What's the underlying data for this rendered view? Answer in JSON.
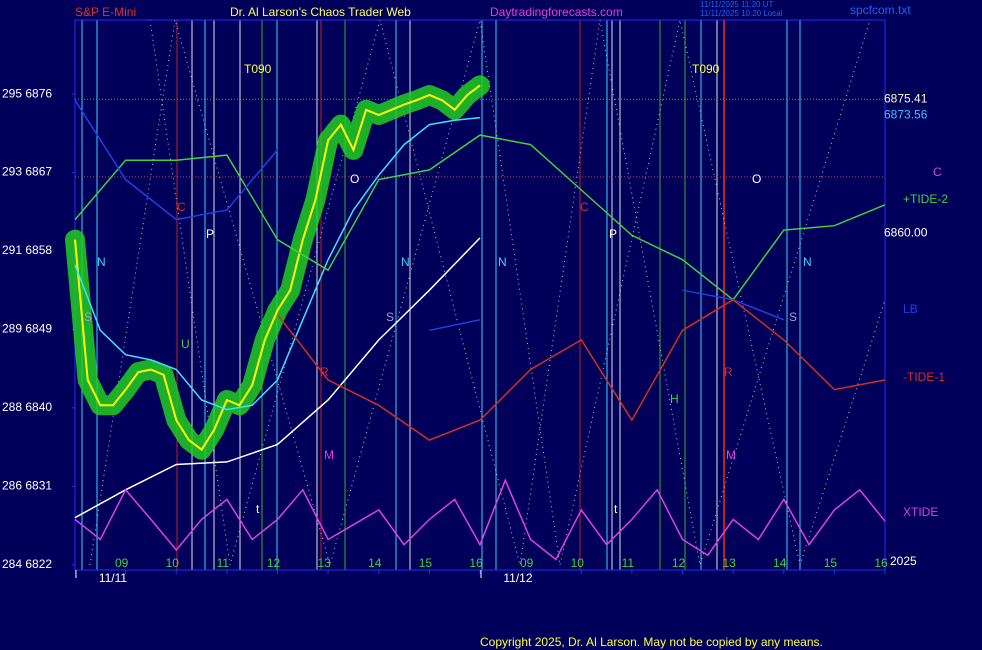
{
  "header": {
    "site": "Dr. Al Larson's Chaos Trader Web",
    "url": "Daytradingforecasts.com",
    "stamp_ut": "11/11/2025 11:20 UT",
    "stamp_local": "11/11/2025 10:20 Local",
    "file": "spcfcom.txt"
  },
  "footer": {
    "copyright": "Copyright 2025, Dr. Al Larson. May not be copied by any means."
  },
  "chart_data": {
    "type": "line",
    "title": "S&P E-Mini",
    "xlim": [
      0,
      16
    ],
    "ylim": [
      6821.4,
      6884.5
    ],
    "xticks": [
      {
        "value": 1,
        "label": "09"
      },
      {
        "value": 2,
        "label": "10"
      },
      {
        "value": 3,
        "label": "11"
      },
      {
        "value": 4,
        "label": "12"
      },
      {
        "value": 5,
        "label": "13"
      },
      {
        "value": 6,
        "label": "14"
      },
      {
        "value": 7,
        "label": "15"
      },
      {
        "value": 8,
        "label": "16"
      },
      {
        "value": 9,
        "label": "09"
      },
      {
        "value": 10,
        "label": "10"
      },
      {
        "value": 11,
        "label": "11"
      },
      {
        "value": 12,
        "label": "12"
      },
      {
        "value": 13,
        "label": "13"
      },
      {
        "value": 14,
        "label": "14"
      },
      {
        "value": 15,
        "label": "15"
      },
      {
        "value": 16,
        "label": "16"
      }
    ],
    "date_ticks": [
      {
        "value": 0.75,
        "label": "11/11"
      },
      {
        "value": 8.75,
        "label": "11/12"
      }
    ],
    "yticks": [
      {
        "value": 6876,
        "label": "295 6876"
      },
      {
        "value": 6867,
        "label": "293 6867"
      },
      {
        "value": 6858,
        "label": "291 6858"
      },
      {
        "value": 6849,
        "label": "289 6849"
      },
      {
        "value": 6840,
        "label": "288 6840"
      },
      {
        "value": 6831,
        "label": "286 6831"
      },
      {
        "value": 6822,
        "label": "284 6822"
      }
    ],
    "levels": [
      {
        "value": 6875.41,
        "color": "#fff8d0"
      },
      {
        "value": 6873.56,
        "color": "#40c0ff"
      },
      {
        "value": 6860,
        "label": "6860.00",
        "color": "#ffffff"
      }
    ],
    "level_lines": [
      {
        "value": 6875.41,
        "color": "#909000"
      },
      {
        "value": 6866.5,
        "color": "#c04060"
      }
    ],
    "series": [
      {
        "color": "#ffff00",
        "glow": "#22cc22",
        "x": [
          0,
          0.25,
          0.5,
          0.75,
          1,
          1.25,
          1.5,
          1.75,
          2,
          2.25,
          2.5,
          2.75,
          3,
          3.25,
          3.5,
          3.75,
          4,
          4.25,
          4.5,
          4.75,
          5,
          5.25,
          5.5,
          5.75,
          6,
          6.25,
          6.5,
          6.75,
          7,
          7.25,
          7.5,
          7.75,
          8
        ],
        "values": [
          6859.3,
          6843.2,
          6840.3,
          6840.3,
          6842.1,
          6844.1,
          6844.4,
          6843.8,
          6838.6,
          6836.3,
          6835.2,
          6837.5,
          6840.9,
          6840.3,
          6842.6,
          6847.8,
          6851.2,
          6853.5,
          6859.3,
          6863.9,
          6870.7,
          6872.5,
          6869.6,
          6874.2,
          6873.6,
          6874.2,
          6874.8,
          6875.3,
          6875.9,
          6875.3,
          6874.2,
          6875.9,
          6877.0
        ]
      },
      {
        "color": "#40e0ff",
        "x": [
          0,
          0.5,
          1,
          1.5,
          2,
          2.5,
          3,
          3.5,
          4,
          4.5,
          5,
          5.5,
          6,
          6.5,
          7,
          7.5,
          8
        ],
        "values": [
          6856.4,
          6848.9,
          6846.1,
          6845.5,
          6844.4,
          6840.9,
          6839.8,
          6840.3,
          6843.2,
          6850.1,
          6857.0,
          6862.7,
          6866.7,
          6870.2,
          6872.5,
          6873.0,
          6873.3
        ]
      },
      {
        "color": "#ffffff",
        "x": [
          0,
          1,
          2,
          3,
          4,
          5,
          6,
          7,
          8
        ],
        "values": [
          6827.4,
          6830.6,
          6833.5,
          6833.8,
          6835.8,
          6840.9,
          6847.8,
          6853.5,
          6859.5
        ]
      },
      {
        "name": "+TIDE-2",
        "color": "#40d040",
        "x": [
          0,
          1,
          2,
          3,
          4,
          5,
          6,
          7,
          8,
          9,
          10,
          11,
          12,
          13,
          14,
          15,
          16
        ],
        "values": [
          6861.6,
          6868.4,
          6868.4,
          6869.0,
          6859.3,
          6855.8,
          6866.2,
          6867.3,
          6871.3,
          6870.2,
          6865.0,
          6859.8,
          6857.0,
          6852.4,
          6860.4,
          6860.9,
          6863.3
        ]
      },
      {
        "name": "LB",
        "color": "#2040e0",
        "x": [
          0,
          1,
          2,
          3,
          4,
          5,
          6,
          7,
          8,
          9,
          10,
          11,
          12,
          13,
          14,
          15,
          16
        ],
        "values": [
          6875.3,
          6866.2,
          6861.6,
          6862.7,
          6869.6,
          null,
          null,
          6848.9,
          6850.1,
          null,
          null,
          null,
          6853.5,
          6852.4,
          6850.1,
          null,
          null
        ]
      },
      {
        "name": "-TIDE-1",
        "color": "#d03020",
        "x": [
          0,
          1,
          2,
          3,
          4,
          5,
          6,
          7,
          8,
          9,
          10,
          11,
          12,
          13,
          14,
          15,
          16
        ],
        "values": [
          null,
          null,
          null,
          null,
          6850.7,
          6843.2,
          6840.3,
          6836.3,
          6838.6,
          6844.4,
          6847.8,
          6838.6,
          6848.9,
          6852.4,
          6847.8,
          6842.1,
          6843.2
        ]
      },
      {
        "name": "XTIDE",
        "color": "#e040e0",
        "x": [
          0,
          0.5,
          1,
          1.5,
          2,
          2.5,
          3,
          3.5,
          4,
          4.5,
          5,
          5.5,
          6,
          6.5,
          7,
          7.5,
          8,
          8.5,
          9,
          9.5,
          10,
          10.5,
          11,
          11.5,
          12,
          12.5,
          13,
          13.5,
          14,
          14.5,
          15,
          15.5,
          16
        ],
        "values": [
          6827.2,
          6824.9,
          6830.6,
          6827.2,
          6823.7,
          6827.2,
          6829.5,
          6824.9,
          6827.2,
          6830.6,
          6824.9,
          6826.6,
          6828.3,
          6824.3,
          6827.2,
          6829.5,
          6824.3,
          6831.7,
          6824.9,
          6822.6,
          6828.3,
          6824.3,
          6827.2,
          6830.6,
          6824.9,
          6823.1,
          6827.2,
          6824.9,
          6829.5,
          6824.3,
          6828.3,
          6830.6,
          6827.0
        ]
      }
    ],
    "annotations": [
      {
        "text": "T090",
        "color": "#ffff40"
      },
      {
        "text": "T090",
        "color": "#ffff40"
      },
      {
        "text": "N",
        "color": "#40d0ff"
      },
      {
        "text": "N",
        "color": "#40d0ff"
      },
      {
        "text": "N",
        "color": "#40d0ff"
      },
      {
        "text": "N",
        "color": "#40d0ff"
      },
      {
        "text": "S",
        "color": "#a0a0e0"
      },
      {
        "text": "S",
        "color": "#a0a0e0"
      },
      {
        "text": "S",
        "color": "#a0a0e0"
      },
      {
        "text": "C",
        "color": "#d03020"
      },
      {
        "text": "C",
        "color": "#d03020"
      },
      {
        "text": "P",
        "color": "#ffffff"
      },
      {
        "text": "P",
        "color": "#ffffff"
      },
      {
        "text": "O",
        "color": "#ffffff"
      },
      {
        "text": "O",
        "color": "#ffffff"
      },
      {
        "text": "R",
        "color": "#d03020"
      },
      {
        "text": "R",
        "color": "#d03020"
      },
      {
        "text": "M",
        "color": "#e040e0"
      },
      {
        "text": "M",
        "color": "#e040e0"
      },
      {
        "text": "U",
        "color": "#40d040"
      },
      {
        "text": "t",
        "color": "#ffffff"
      },
      {
        "text": "t",
        "color": "#ffffff"
      },
      {
        "text": "H",
        "color": "#40d040"
      },
      {
        "text": "C",
        "color": "#e040e0"
      },
      {
        "text": "2025",
        "color": "#ffffff"
      }
    ]
  }
}
